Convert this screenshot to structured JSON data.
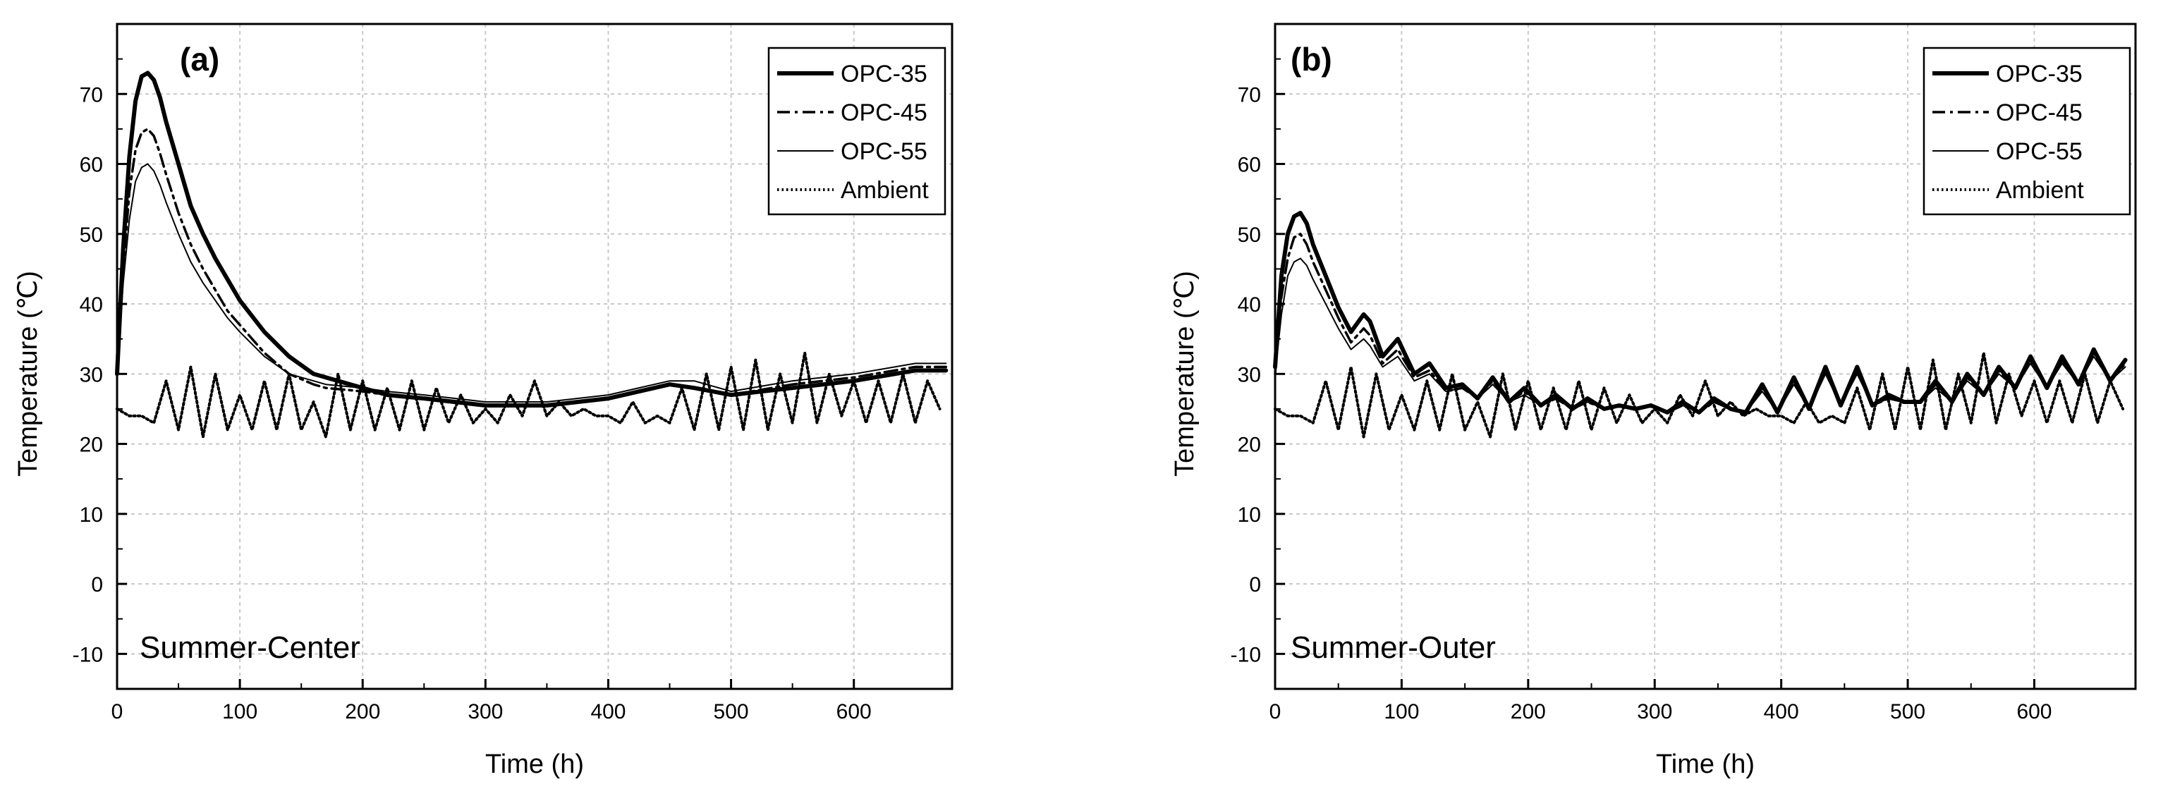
{
  "colors": {
    "line": "#000000",
    "grid": "#c8c8c8",
    "background": "#ffffff"
  },
  "chart_data": [
    {
      "type": "line",
      "panel_label": "(a)",
      "note": "Summer-Center",
      "xlabel": "Time (h)",
      "ylabel": "Temperature (℃)",
      "xlim": [
        0,
        680
      ],
      "ylim": [
        -15,
        80
      ],
      "xticks": [
        0,
        100,
        200,
        300,
        400,
        500,
        600
      ],
      "yticks": [
        -10,
        0,
        10,
        20,
        30,
        40,
        50,
        60,
        70
      ],
      "grid": true,
      "legend_position": "top-right",
      "series": [
        {
          "name": "OPC-35",
          "style": "solid-thick",
          "x": [
            0,
            5,
            10,
            15,
            20,
            25,
            30,
            35,
            40,
            50,
            60,
            70,
            80,
            90,
            100,
            120,
            140,
            160,
            170,
            200,
            220,
            250,
            300,
            350,
            400,
            450,
            470,
            500,
            550,
            600,
            650,
            675
          ],
          "y": [
            30,
            48,
            61,
            69,
            72.5,
            73,
            72,
            69.5,
            66,
            60,
            54,
            50,
            46.5,
            43.5,
            40.5,
            36,
            32.5,
            30,
            29.5,
            28,
            27,
            26.5,
            25.5,
            25.5,
            26.5,
            28.5,
            28,
            27,
            28,
            29,
            30.5,
            30.5
          ]
        },
        {
          "name": "OPC-45",
          "style": "dash-dot",
          "x": [
            0,
            5,
            10,
            15,
            20,
            25,
            30,
            35,
            40,
            50,
            60,
            70,
            80,
            90,
            100,
            120,
            140,
            160,
            170,
            200,
            220,
            250,
            300,
            350,
            400,
            450,
            470,
            500,
            550,
            600,
            650,
            675
          ],
          "y": [
            30,
            45,
            56,
            62,
            64.5,
            65,
            64,
            61.5,
            58.5,
            53,
            48.5,
            45,
            42,
            39,
            37,
            33,
            30,
            28.5,
            28,
            27.5,
            27,
            26.5,
            25.5,
            25.5,
            26.5,
            28.5,
            28,
            27,
            28.5,
            29.5,
            31,
            31
          ]
        },
        {
          "name": "OPC-55",
          "style": "solid-thin",
          "x": [
            0,
            5,
            10,
            15,
            20,
            25,
            30,
            35,
            40,
            50,
            60,
            70,
            80,
            90,
            100,
            120,
            140,
            160,
            170,
            200,
            220,
            250,
            300,
            350,
            400,
            450,
            470,
            500,
            550,
            600,
            650,
            675
          ],
          "y": [
            30,
            43,
            52,
            57.5,
            59.5,
            60,
            59,
            57,
            54.5,
            50,
            46,
            43,
            40.5,
            38,
            36,
            32.5,
            30,
            29,
            28.5,
            28,
            27.5,
            27,
            26,
            26,
            27,
            29,
            29,
            27.5,
            29,
            30,
            31.5,
            31.5
          ]
        },
        {
          "name": "Ambient",
          "style": "dotted",
          "x": [
            0,
            10,
            20,
            30,
            40,
            50,
            60,
            70,
            80,
            90,
            100,
            110,
            120,
            130,
            140,
            150,
            160,
            170,
            180,
            190,
            200,
            210,
            220,
            230,
            240,
            250,
            260,
            270,
            280,
            290,
            300,
            310,
            320,
            330,
            340,
            350,
            360,
            370,
            380,
            390,
            400,
            410,
            420,
            430,
            440,
            450,
            460,
            470,
            480,
            490,
            500,
            510,
            520,
            530,
            540,
            550,
            560,
            570,
            580,
            590,
            600,
            610,
            620,
            630,
            640,
            650,
            660,
            670
          ],
          "y": [
            25,
            24,
            24,
            23,
            29,
            22,
            31,
            21,
            30,
            22,
            27,
            22,
            29,
            22,
            30,
            22,
            26,
            21,
            30,
            22,
            29,
            22,
            28,
            22,
            29,
            22,
            28,
            23,
            27,
            23,
            25,
            23,
            27,
            24,
            29,
            24,
            26,
            24,
            25,
            24,
            24,
            23,
            26,
            23,
            24,
            23,
            28,
            22,
            30,
            22,
            31,
            22,
            32,
            22,
            30,
            23,
            33,
            23,
            30,
            24,
            29,
            23,
            29,
            23,
            30,
            23,
            29,
            25
          ]
        }
      ]
    },
    {
      "type": "line",
      "panel_label": "(b)",
      "note": "Summer-Outer",
      "xlabel": "Time (h)",
      "ylabel": "Temperature (℃)",
      "xlim": [
        0,
        680
      ],
      "ylim": [
        -15,
        80
      ],
      "xticks": [
        0,
        100,
        200,
        300,
        400,
        500,
        600
      ],
      "yticks": [
        -10,
        0,
        10,
        20,
        30,
        40,
        50,
        60,
        70
      ],
      "grid": true,
      "legend_position": "top-right",
      "series": [
        {
          "name": "OPC-35",
          "style": "solid-thick",
          "x": [
            0,
            5,
            10,
            15,
            20,
            25,
            30,
            40,
            50,
            60,
            70,
            75,
            85,
            97,
            110,
            122,
            135,
            148,
            160,
            172,
            185,
            197,
            210,
            222,
            235,
            247,
            260,
            272,
            285,
            297,
            310,
            322,
            335,
            347,
            360,
            372,
            385,
            397,
            410,
            422,
            435,
            447,
            460,
            472,
            485,
            497,
            510,
            522,
            535,
            547,
            560,
            572,
            585,
            597,
            610,
            622,
            635,
            647,
            660,
            672
          ],
          "y": [
            31,
            44,
            50,
            52.5,
            53,
            51.5,
            48.5,
            44,
            39.5,
            36,
            38.5,
            37.5,
            32.5,
            35,
            30,
            31.5,
            28,
            28.5,
            26.5,
            29.5,
            26,
            28,
            25.5,
            27,
            25,
            26.5,
            25,
            25.5,
            25,
            25.5,
            24.5,
            26,
            24.5,
            26.5,
            25,
            24.5,
            28.5,
            24.5,
            29.5,
            25,
            31,
            25.5,
            31,
            25.5,
            27,
            26,
            26,
            29,
            26,
            30,
            27,
            31,
            28,
            32.5,
            28,
            32.5,
            28.5,
            33.5,
            29,
            32
          ]
        },
        {
          "name": "OPC-45",
          "style": "dash-dot",
          "x": [
            0,
            5,
            10,
            15,
            20,
            25,
            30,
            40,
            50,
            60,
            70,
            75,
            85,
            97,
            110,
            122,
            135,
            148,
            160,
            172,
            185,
            197,
            210,
            222,
            235,
            247,
            260,
            272,
            285,
            297,
            310,
            322,
            335,
            347,
            360,
            372,
            385,
            397,
            410,
            422,
            435,
            447,
            460,
            472,
            485,
            497,
            510,
            522,
            535,
            547,
            560,
            572,
            585,
            597,
            610,
            622,
            635,
            647,
            660,
            672
          ],
          "y": [
            30,
            41,
            46.5,
            49.5,
            50,
            48.5,
            46,
            42,
            38,
            34.5,
            36.5,
            35.5,
            31.5,
            33.5,
            29.5,
            30.5,
            27.5,
            28,
            26.5,
            29,
            26,
            27.5,
            25.5,
            26.5,
            25,
            26,
            25,
            25.5,
            25,
            25.5,
            24.5,
            25.5,
            24.5,
            26,
            25,
            24.5,
            28,
            24.5,
            29,
            25,
            30.5,
            25.5,
            30.5,
            25.5,
            26.5,
            26,
            26,
            28.5,
            26,
            29.5,
            27,
            30.5,
            28,
            32,
            28,
            32,
            28.5,
            33,
            29,
            31.5
          ]
        },
        {
          "name": "OPC-55",
          "style": "solid-thin",
          "x": [
            0,
            5,
            10,
            15,
            20,
            25,
            30,
            40,
            50,
            60,
            70,
            75,
            85,
            97,
            110,
            122,
            135,
            148,
            160,
            172,
            185,
            197,
            210,
            222,
            235,
            247,
            260,
            272,
            285,
            297,
            310,
            322,
            335,
            347,
            360,
            372,
            385,
            397,
            410,
            422,
            435,
            447,
            460,
            472,
            485,
            497,
            510,
            522,
            535,
            547,
            560,
            572,
            585,
            597,
            610,
            622,
            635,
            647,
            660,
            672
          ],
          "y": [
            30,
            38.5,
            44,
            46,
            46.5,
            45.5,
            43.5,
            40,
            36.5,
            33.5,
            35,
            34,
            31,
            32.5,
            29,
            30,
            27.5,
            28,
            26.5,
            28.5,
            26,
            27,
            25.5,
            26.5,
            25,
            26,
            25,
            25.5,
            25,
            25.5,
            24.5,
            25.5,
            24.5,
            26,
            25,
            24.5,
            27.5,
            24.5,
            28.5,
            25,
            30,
            25.5,
            30,
            25.5,
            26.5,
            26,
            26,
            28,
            26,
            29,
            27,
            30,
            28,
            31.5,
            28,
            31.5,
            28.5,
            32.5,
            29,
            31
          ]
        },
        {
          "name": "Ambient",
          "style": "dotted",
          "x": [
            0,
            10,
            20,
            30,
            40,
            50,
            60,
            70,
            80,
            90,
            100,
            110,
            120,
            130,
            140,
            150,
            160,
            170,
            180,
            190,
            200,
            210,
            220,
            230,
            240,
            250,
            260,
            270,
            280,
            290,
            300,
            310,
            320,
            330,
            340,
            350,
            360,
            370,
            380,
            390,
            400,
            410,
            420,
            430,
            440,
            450,
            460,
            470,
            480,
            490,
            500,
            510,
            520,
            530,
            540,
            550,
            560,
            570,
            580,
            590,
            600,
            610,
            620,
            630,
            640,
            650,
            660,
            670
          ],
          "y": [
            25,
            24,
            24,
            23,
            29,
            22,
            31,
            21,
            30,
            22,
            27,
            22,
            29,
            22,
            30,
            22,
            26,
            21,
            30,
            22,
            29,
            22,
            28,
            22,
            29,
            22,
            28,
            23,
            27,
            23,
            25,
            23,
            27,
            24,
            29,
            24,
            26,
            24,
            25,
            24,
            24,
            23,
            26,
            23,
            24,
            23,
            28,
            22,
            30,
            22,
            31,
            22,
            32,
            22,
            30,
            23,
            33,
            23,
            30,
            24,
            29,
            23,
            29,
            23,
            30,
            23,
            29,
            25
          ]
        }
      ]
    }
  ]
}
